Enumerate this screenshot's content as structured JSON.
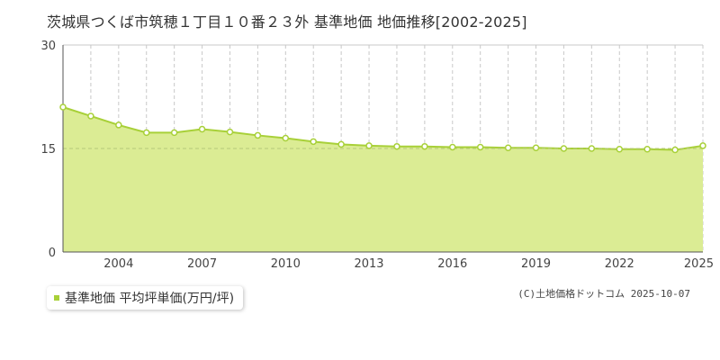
{
  "chart_data": {
    "type": "area",
    "title": "茨城県つくば市筑穂１丁目１０番２３外 基準地価 地価推移[2002-2025]",
    "xlabel": "",
    "ylabel": "",
    "ylim": [
      0,
      30
    ],
    "yticks": [
      0,
      15,
      30
    ],
    "xticks": [
      2004,
      2007,
      2010,
      2013,
      2016,
      2019,
      2022,
      2025
    ],
    "grid": true,
    "legend_position": "bottom-left",
    "series": [
      {
        "name": "基準地価 平均坪単価(万円/坪)",
        "color": "#a8d038",
        "fill": "#dbec94",
        "x": [
          2002,
          2003,
          2004,
          2005,
          2006,
          2007,
          2008,
          2009,
          2010,
          2011,
          2012,
          2013,
          2014,
          2015,
          2016,
          2017,
          2018,
          2019,
          2020,
          2021,
          2022,
          2023,
          2024,
          2025
        ],
        "values": [
          21.0,
          19.7,
          18.4,
          17.3,
          17.3,
          17.8,
          17.4,
          16.9,
          16.5,
          16.0,
          15.6,
          15.4,
          15.3,
          15.3,
          15.2,
          15.2,
          15.1,
          15.1,
          15.0,
          15.0,
          14.9,
          14.9,
          14.8,
          15.4
        ]
      }
    ]
  },
  "legend": {
    "label": "基準地価 平均坪単価(万円/坪)"
  },
  "copyright": "(C)土地価格ドットコム 2025-10-07"
}
